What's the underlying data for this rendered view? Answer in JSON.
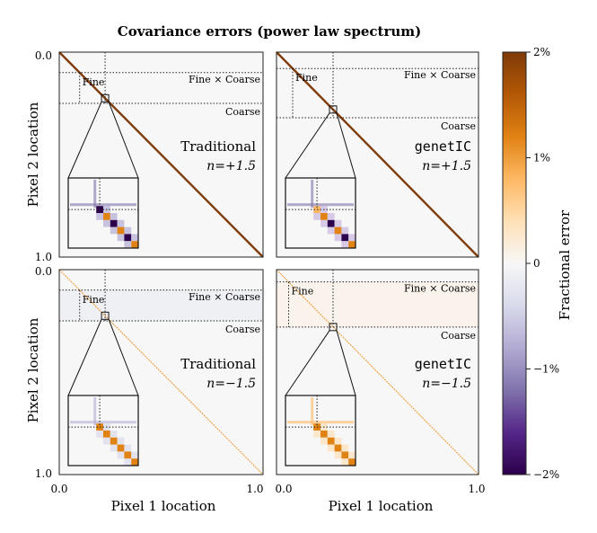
{
  "title": "Covariance errors (power law spectrum)",
  "xlabel": "Pixel 1 location",
  "ylabel": "Pixel 2 location",
  "colorbar": {
    "label": "Fractional error",
    "ticks": [
      "2%",
      "1%",
      "0",
      "−1%",
      "−2%"
    ],
    "tick_values": [
      0.02,
      0.01,
      0,
      -0.01,
      -0.02
    ],
    "range": [
      -0.02,
      0.02
    ],
    "colors": [
      "#2d004b",
      "#542788",
      "#8073ac",
      "#b2abd2",
      "#d8daeb",
      "#f7f7f7",
      "#fee0b6",
      "#fdb863",
      "#e08214",
      "#b35806",
      "#7f3b08"
    ]
  },
  "axis_ticks": {
    "x": [
      "0.0",
      "1.0"
    ],
    "y": [
      "0.0",
      "1.0"
    ]
  },
  "chart_data": [
    {
      "type": "heatmap",
      "method": "Traditional",
      "spectral_index": "n=+1.5",
      "xlim": [
        0.0,
        1.0
      ],
      "ylim": [
        0.0,
        1.0
      ],
      "region_labels": [
        "Fine",
        "Fine × Coarse",
        "Coarse"
      ],
      "fine_extent": [
        0.0,
        0.1,
        0.1,
        0.25
      ],
      "zoom_center": [
        0.225,
        0.225
      ],
      "diagonal_error_pct": 2.0,
      "fine_region_error_pct": 0.0
    },
    {
      "type": "heatmap",
      "method": "genetIC",
      "spectral_index": "n=+1.5",
      "xlim": [
        0.0,
        1.0
      ],
      "ylim": [
        0.0,
        1.0
      ],
      "region_labels": [
        "Fine",
        "Fine × Coarse",
        "Coarse"
      ],
      "fine_extent": [
        0.0,
        0.08,
        0.08,
        0.32
      ],
      "zoom_center": [
        0.28,
        0.28
      ],
      "diagonal_error_pct": 2.0,
      "fine_region_error_pct": 0.0
    },
    {
      "type": "heatmap",
      "method": "Traditional",
      "spectral_index": "n=−1.5",
      "xlim": [
        0.0,
        1.0
      ],
      "ylim": [
        0.0,
        1.0
      ],
      "region_labels": [
        "Fine",
        "Fine × Coarse",
        "Coarse"
      ],
      "fine_extent": [
        0.0,
        0.1,
        0.1,
        0.25
      ],
      "zoom_center": [
        0.225,
        0.225
      ],
      "diagonal_error_pct": 1.0,
      "fine_region_error_pct": -0.3
    },
    {
      "type": "heatmap",
      "method": "genetIC",
      "spectral_index": "n=−1.5",
      "xlim": [
        0.0,
        1.0
      ],
      "ylim": [
        0.0,
        1.0
      ],
      "region_labels": [
        "Fine",
        "Fine × Coarse",
        "Coarse"
      ],
      "fine_extent": [
        0.0,
        0.06,
        0.06,
        0.28
      ],
      "zoom_center": [
        0.28,
        0.28
      ],
      "diagonal_error_pct": 1.0,
      "fine_region_error_pct": 0.2
    }
  ]
}
